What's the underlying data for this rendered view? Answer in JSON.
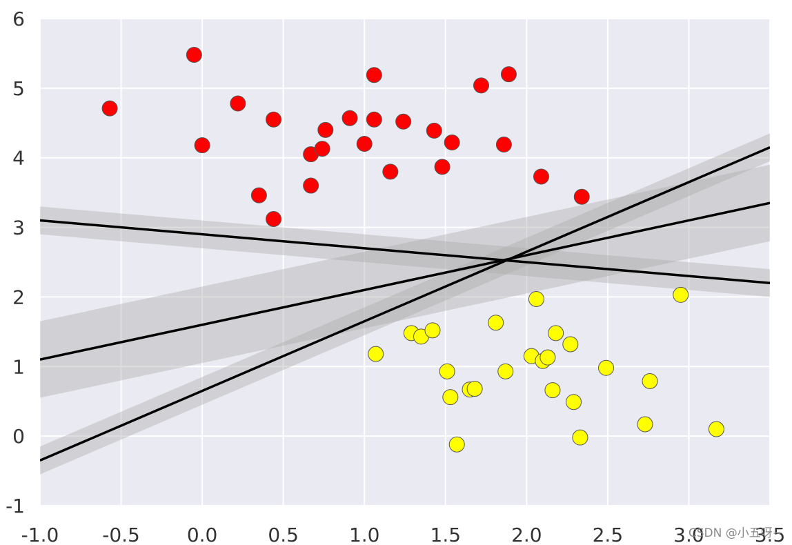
{
  "chart_data": {
    "type": "scatter",
    "title": "",
    "xlabel": "",
    "ylabel": "",
    "xlim": [
      -1.0,
      3.5
    ],
    "ylim": [
      -1,
      6
    ],
    "xticks": [
      "-1.0",
      "-0.5",
      "0.0",
      "0.5",
      "1.0",
      "1.5",
      "2.0",
      "2.5",
      "3.0",
      "3.5"
    ],
    "yticks": [
      "-1",
      "0",
      "1",
      "2",
      "3",
      "4",
      "5",
      "6"
    ],
    "grid": true,
    "background_color": "#eaeaf2",
    "series": [
      {
        "color": "#ff0000",
        "points": [
          [
            -0.57,
            4.71
          ],
          [
            -0.05,
            5.48
          ],
          [
            0.0,
            4.18
          ],
          [
            0.22,
            4.78
          ],
          [
            0.35,
            3.46
          ],
          [
            0.44,
            4.55
          ],
          [
            0.44,
            3.12
          ],
          [
            0.67,
            4.05
          ],
          [
            0.67,
            3.6
          ],
          [
            0.74,
            4.13
          ],
          [
            0.76,
            4.4
          ],
          [
            0.91,
            4.57
          ],
          [
            1.0,
            4.2
          ],
          [
            1.06,
            5.19
          ],
          [
            1.06,
            4.55
          ],
          [
            1.16,
            3.8
          ],
          [
            1.24,
            4.52
          ],
          [
            1.43,
            4.39
          ],
          [
            1.48,
            3.87
          ],
          [
            1.54,
            4.22
          ],
          [
            1.72,
            5.04
          ],
          [
            1.86,
            4.19
          ],
          [
            1.89,
            5.2
          ],
          [
            2.09,
            3.73
          ],
          [
            2.34,
            3.44
          ]
        ]
      },
      {
        "color": "#ffff00",
        "points": [
          [
            1.07,
            1.18
          ],
          [
            1.29,
            1.48
          ],
          [
            1.35,
            1.43
          ],
          [
            1.42,
            1.52
          ],
          [
            1.51,
            0.93
          ],
          [
            1.53,
            0.56
          ],
          [
            1.57,
            -0.12
          ],
          [
            1.65,
            0.67
          ],
          [
            1.68,
            0.68
          ],
          [
            1.81,
            1.63
          ],
          [
            1.87,
            0.93
          ],
          [
            2.03,
            1.15
          ],
          [
            2.06,
            1.97
          ],
          [
            2.1,
            1.08
          ],
          [
            2.13,
            1.13
          ],
          [
            2.16,
            0.66
          ],
          [
            2.18,
            1.48
          ],
          [
            2.27,
            1.32
          ],
          [
            2.29,
            0.49
          ],
          [
            2.33,
            -0.02
          ],
          [
            2.49,
            0.98
          ],
          [
            2.73,
            0.17
          ],
          [
            2.76,
            0.79
          ],
          [
            2.95,
            2.03
          ],
          [
            3.17,
            0.1
          ]
        ]
      }
    ],
    "lines": [
      {
        "m": 1.0,
        "b": 0.65,
        "margin": 0.2
      },
      {
        "m": 0.5,
        "b": 1.6,
        "margin": 0.55
      },
      {
        "m": -0.2,
        "b": 2.9,
        "margin": 0.2
      }
    ],
    "band_color": "#aaaaaa",
    "line_color": "#000000"
  },
  "watermark": "CSDN @小五呀~"
}
